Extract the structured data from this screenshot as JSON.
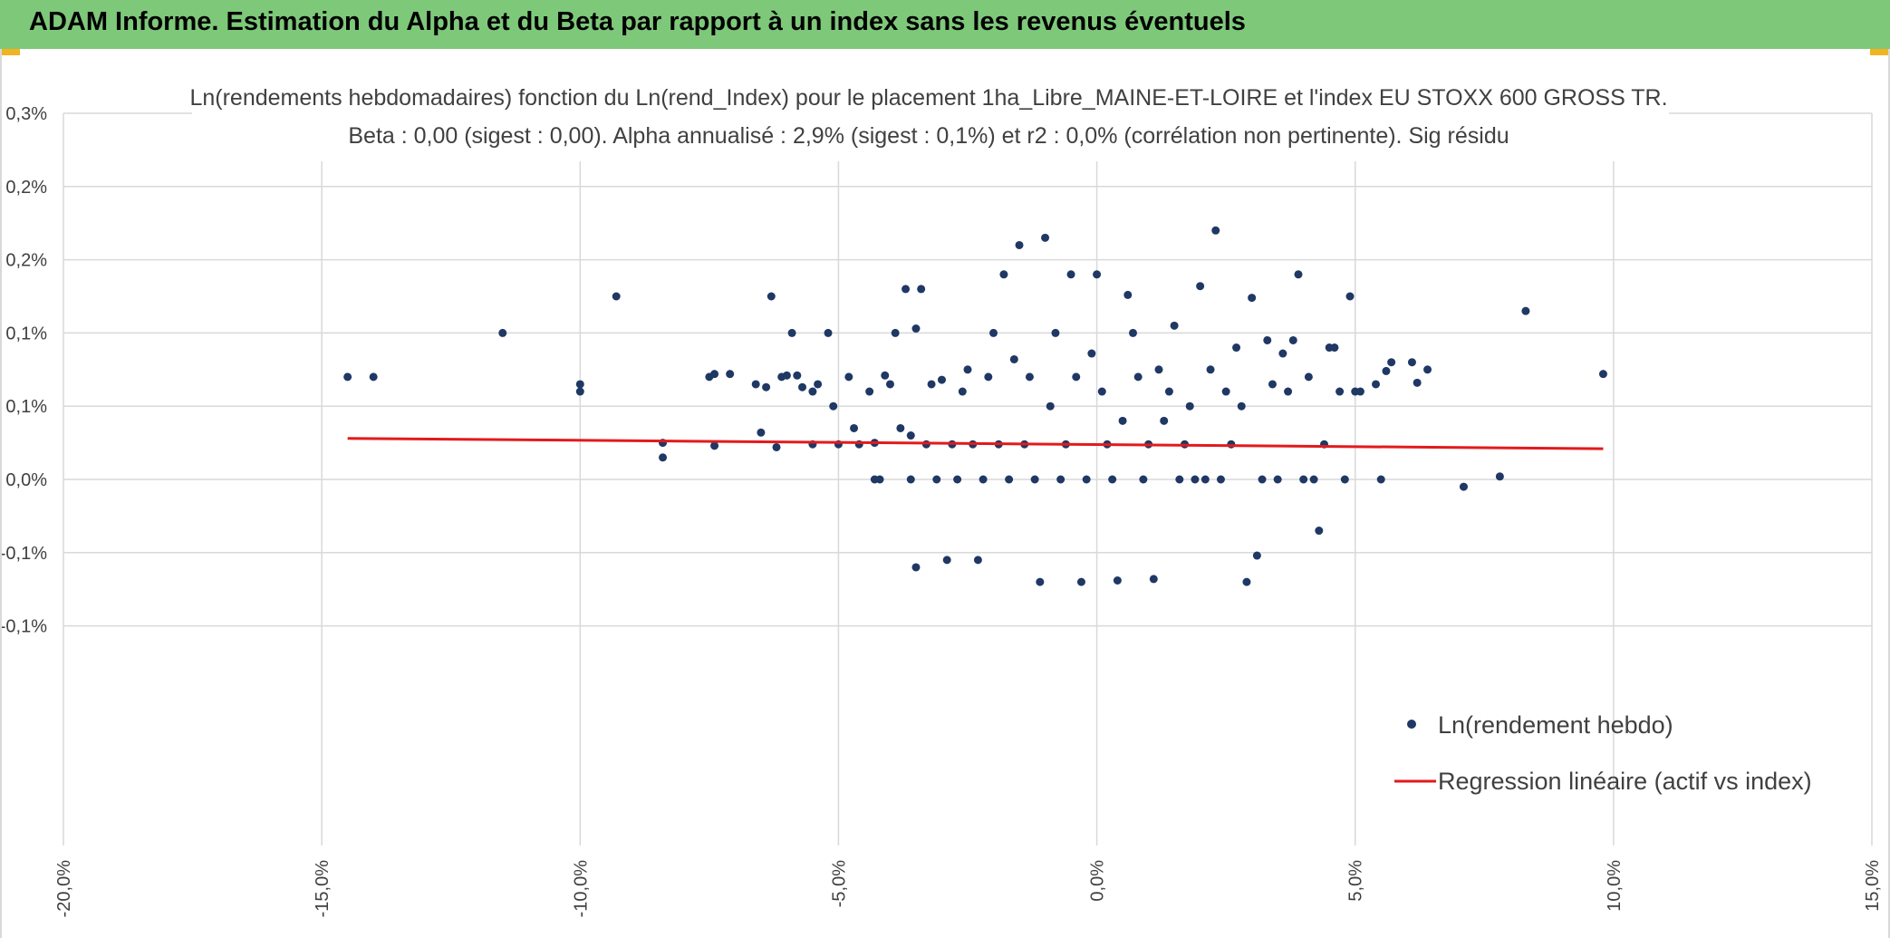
{
  "banner": {
    "title": "ADAM Informe. Estimation du Alpha et du Beta par rapport à un index sans les revenus éventuels"
  },
  "colors": {
    "banner_bg": "#7ec87a",
    "corner_accent": "#f2b320",
    "points": "#1f3864",
    "regression": "#e31a1c",
    "grid": "#d9d9d9"
  },
  "chart_data": {
    "type": "scatter",
    "title_line1": "Ln(rendements hebdomadaires) fonction du Ln(rend_Index) pour le placement 1ha_Libre_MAINE-ET-LOIRE et l'index EU STOXX 600 GROSS TR.",
    "title_line2": "Beta : 0,00 (sigest : 0,00). Alpha annualisé : 2,9% (sigest : 0,1%) et r2 : 0,0% (corrélation non pertinente). Sig résidu",
    "xlim": [
      -0.2,
      0.15
    ],
    "ylim": [
      -0.0015,
      0.0035
    ],
    "x_ticks": [
      -0.2,
      -0.15,
      -0.1,
      -0.05,
      0.0,
      0.05,
      0.1,
      0.15
    ],
    "x_tick_labels": [
      "-20,0%",
      "-15,0%",
      "-10,0%",
      "-5,0%",
      "0,0%",
      "5,0%",
      "10,0%",
      "15,0%"
    ],
    "y_ticks": [
      0.0035,
      0.0025,
      0.0015,
      0.0005,
      -0.0005,
      -0.0015
    ],
    "y_tick_labels": [
      "0,3%",
      "0,2%",
      "0,2%",
      "0,1%",
      "0,1%",
      "0,0%",
      "-0,1%",
      "-0,1%"
    ],
    "y_tick_values": [
      0.0035,
      0.0025,
      0.0015,
      0.0005,
      -0.0005,
      -0.0015
    ],
    "y_label_values": [
      0.0035,
      0.003,
      0.0025,
      0.002,
      0.0015,
      0.001,
      0.0005,
      0.0
    ],
    "grid": true,
    "legend_position": "bottom-right",
    "series": [
      {
        "name": "Ln(rendement hebdo)",
        "kind": "scatter",
        "points": [
          [
            -0.145,
            0.0017
          ],
          [
            -0.14,
            0.0017
          ],
          [
            -0.115,
            0.002
          ],
          [
            -0.1,
            0.00165
          ],
          [
            -0.1,
            0.0016
          ],
          [
            -0.093,
            0.00225
          ],
          [
            -0.084,
            0.00125
          ],
          [
            -0.084,
            0.00115
          ],
          [
            -0.075,
            0.0017
          ],
          [
            -0.074,
            0.00172
          ],
          [
            -0.074,
            0.00123
          ],
          [
            -0.071,
            0.00172
          ],
          [
            -0.066,
            0.00165
          ],
          [
            -0.065,
            0.00132
          ],
          [
            -0.064,
            0.00163
          ],
          [
            -0.063,
            0.00225
          ],
          [
            -0.062,
            0.00122
          ],
          [
            -0.061,
            0.0017
          ],
          [
            -0.06,
            0.00171
          ],
          [
            -0.059,
            0.002
          ],
          [
            -0.058,
            0.00171
          ],
          [
            -0.057,
            0.00163
          ],
          [
            -0.055,
            0.0016
          ],
          [
            -0.055,
            0.00124
          ],
          [
            -0.054,
            0.00165
          ],
          [
            -0.052,
            0.002
          ],
          [
            -0.051,
            0.0015
          ],
          [
            -0.05,
            0.00124
          ],
          [
            -0.048,
            0.0017
          ],
          [
            -0.047,
            0.00135
          ],
          [
            -0.046,
            0.00124
          ],
          [
            -0.044,
            0.0016
          ],
          [
            -0.043,
            0.00125
          ],
          [
            -0.043,
            0.001
          ],
          [
            -0.042,
            0.001
          ],
          [
            -0.041,
            0.00171
          ],
          [
            -0.04,
            0.00165
          ],
          [
            -0.039,
            0.002
          ],
          [
            -0.038,
            0.00135
          ],
          [
            -0.037,
            0.0023
          ],
          [
            -0.036,
            0.0013
          ],
          [
            -0.036,
            0.001
          ],
          [
            -0.035,
            0.0004
          ],
          [
            -0.035,
            0.00203
          ],
          [
            -0.034,
            0.0023
          ],
          [
            -0.033,
            0.00124
          ],
          [
            -0.032,
            0.00165
          ],
          [
            -0.031,
            0.001
          ],
          [
            -0.03,
            0.00168
          ],
          [
            -0.029,
            0.00045
          ],
          [
            -0.028,
            0.00124
          ],
          [
            -0.027,
            0.001
          ],
          [
            -0.026,
            0.0016
          ],
          [
            -0.025,
            0.00175
          ],
          [
            -0.024,
            0.00124
          ],
          [
            -0.023,
            0.00045
          ],
          [
            -0.022,
            0.001
          ],
          [
            -0.021,
            0.0017
          ],
          [
            -0.02,
            0.002
          ],
          [
            -0.019,
            0.00124
          ],
          [
            -0.018,
            0.0024
          ],
          [
            -0.017,
            0.001
          ],
          [
            -0.016,
            0.00182
          ],
          [
            -0.015,
            0.0026
          ],
          [
            -0.014,
            0.00124
          ],
          [
            -0.013,
            0.0017
          ],
          [
            -0.012,
            0.001
          ],
          [
            -0.011,
            0.0003
          ],
          [
            -0.01,
            0.00265
          ],
          [
            -0.009,
            0.0015
          ],
          [
            -0.008,
            0.002
          ],
          [
            -0.007,
            0.001
          ],
          [
            -0.006,
            0.00124
          ],
          [
            -0.005,
            0.0024
          ],
          [
            -0.004,
            0.0017
          ],
          [
            -0.003,
            0.0003
          ],
          [
            -0.002,
            0.001
          ],
          [
            -0.001,
            0.00186
          ],
          [
            0.0,
            0.0024
          ],
          [
            0.001,
            0.0016
          ],
          [
            0.002,
            0.00124
          ],
          [
            0.003,
            0.001
          ],
          [
            0.004,
            0.00031
          ],
          [
            0.005,
            0.0014
          ],
          [
            0.006,
            0.00226
          ],
          [
            0.007,
            0.002
          ],
          [
            0.008,
            0.0017
          ],
          [
            0.009,
            0.001
          ],
          [
            0.01,
            0.00124
          ],
          [
            0.011,
            0.00032
          ],
          [
            0.012,
            0.00175
          ],
          [
            0.013,
            0.0014
          ],
          [
            0.014,
            0.0016
          ],
          [
            0.015,
            0.00205
          ],
          [
            0.016,
            0.001
          ],
          [
            0.017,
            0.00124
          ],
          [
            0.018,
            0.0015
          ],
          [
            0.019,
            0.001
          ],
          [
            0.02,
            0.00232
          ],
          [
            0.021,
            0.001
          ],
          [
            0.022,
            0.00175
          ],
          [
            0.023,
            0.0027
          ],
          [
            0.024,
            0.001
          ],
          [
            0.025,
            0.0016
          ],
          [
            0.026,
            0.00124
          ],
          [
            0.027,
            0.0019
          ],
          [
            0.028,
            0.0015
          ],
          [
            0.029,
            0.0003
          ],
          [
            0.03,
            0.00224
          ],
          [
            0.031,
            0.00048
          ],
          [
            0.032,
            0.001
          ],
          [
            0.033,
            0.00195
          ],
          [
            0.034,
            0.00165
          ],
          [
            0.035,
            0.001
          ],
          [
            0.036,
            0.00186
          ],
          [
            0.037,
            0.0016
          ],
          [
            0.038,
            0.00195
          ],
          [
            0.039,
            0.0024
          ],
          [
            0.04,
            0.001
          ],
          [
            0.041,
            0.0017
          ],
          [
            0.042,
            0.001
          ],
          [
            0.043,
            0.00065
          ],
          [
            0.044,
            0.00124
          ],
          [
            0.045,
            0.0019
          ],
          [
            0.046,
            0.0019
          ],
          [
            0.047,
            0.0016
          ],
          [
            0.048,
            0.001
          ],
          [
            0.049,
            0.00225
          ],
          [
            0.05,
            0.0016
          ],
          [
            0.051,
            0.0016
          ],
          [
            0.054,
            0.00165
          ],
          [
            0.055,
            0.001
          ],
          [
            0.056,
            0.00174
          ],
          [
            0.057,
            0.0018
          ],
          [
            0.061,
            0.0018
          ],
          [
            0.062,
            0.00166
          ],
          [
            0.064,
            0.00175
          ],
          [
            0.071,
            0.00095
          ],
          [
            0.078,
            0.00102
          ],
          [
            0.083,
            0.00215
          ],
          [
            0.098,
            0.00172
          ]
        ]
      },
      {
        "name": "Regression linéaire (actif vs index)",
        "kind": "line",
        "points": [
          [
            -0.145,
            0.00128
          ],
          [
            0.098,
            0.00121
          ]
        ]
      }
    ]
  }
}
